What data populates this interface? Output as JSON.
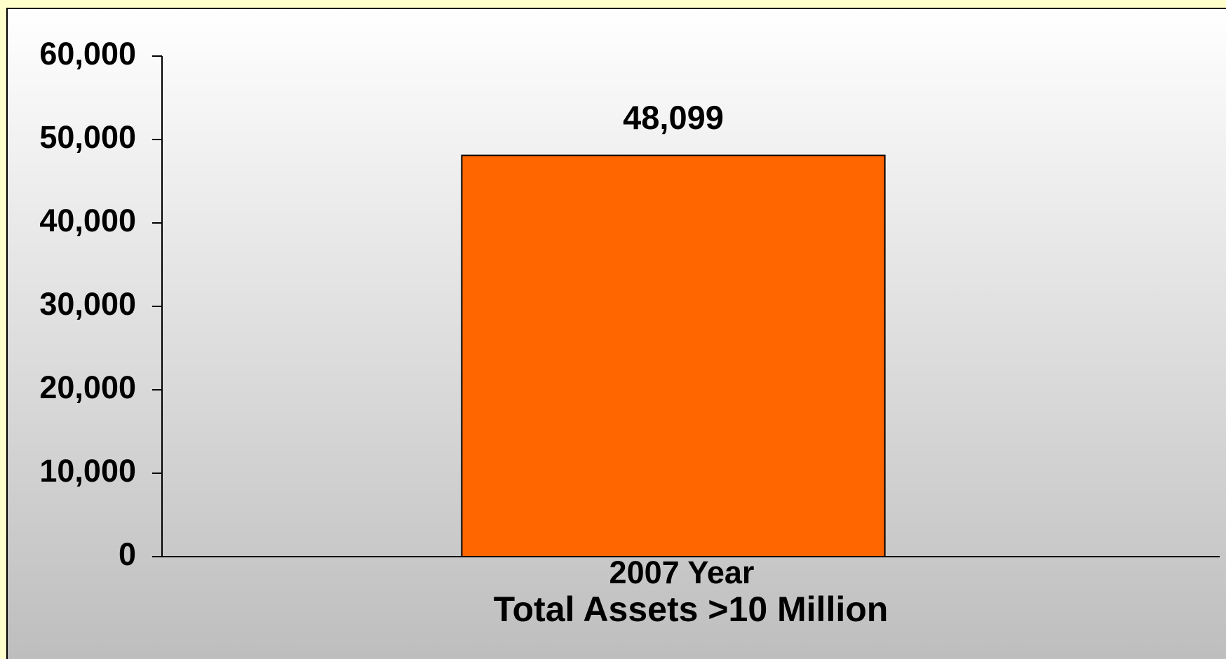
{
  "chart_data": {
    "type": "bar",
    "categories": [
      "2007 Year"
    ],
    "x_label": "Total Assets >10 Million",
    "values": [
      48099
    ],
    "value_labels": [
      "48,099"
    ],
    "color": "#ff6600",
    "ylim": [
      0,
      60000
    ],
    "yticks": [
      0,
      {
        "value": 10000,
        "label": "10,000"
      },
      {
        "value": 20000,
        "label": "20,000"
      },
      {
        "value": 30000,
        "label": "30,000"
      },
      {
        "value": 40000,
        "label": "40,000"
      },
      {
        "value": 50000,
        "label": "50,000"
      },
      {
        "value": 60000,
        "label": "60,000"
      }
    ],
    "grid": false
  }
}
